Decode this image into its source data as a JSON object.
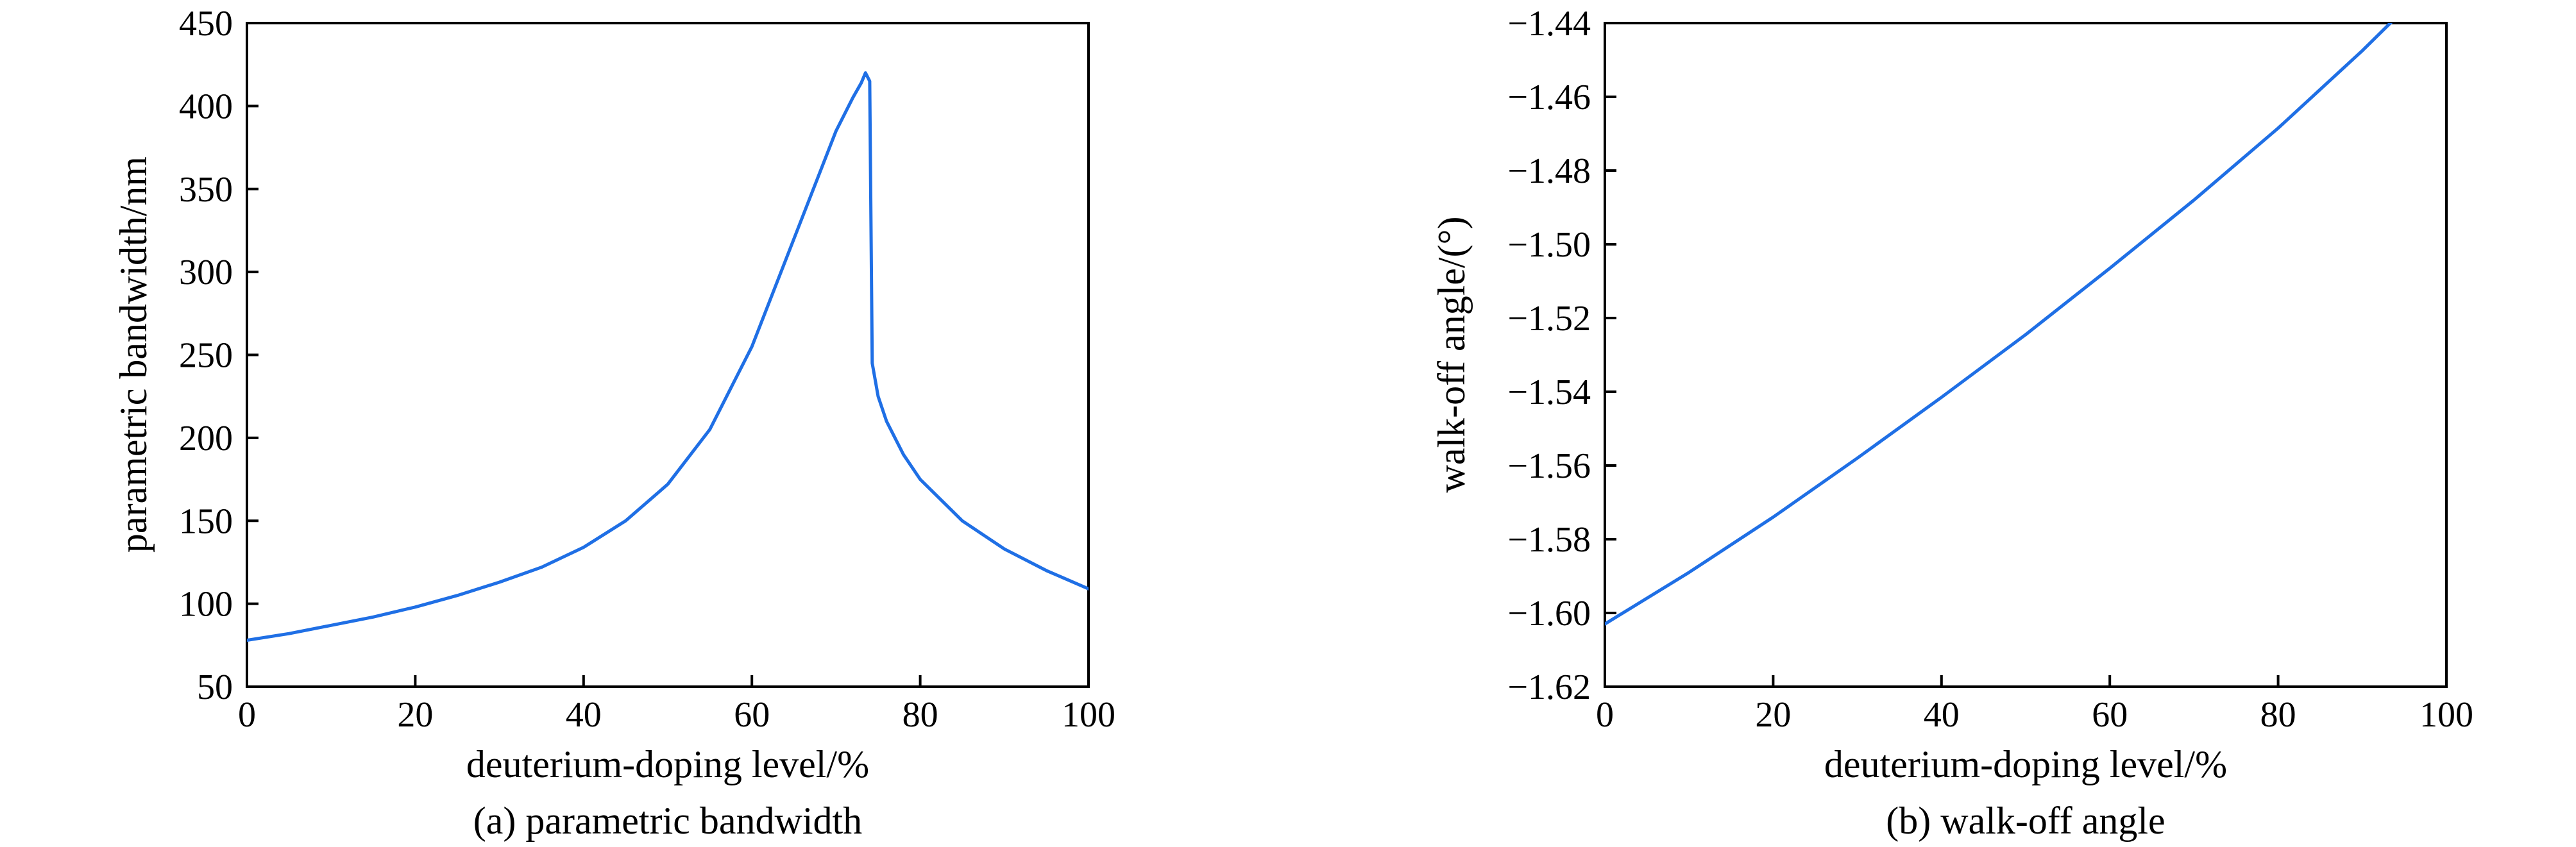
{
  "colors": {
    "series": "#1f6fe5",
    "axis": "#000000",
    "background": "#ffffff"
  },
  "chart_data": [
    {
      "type": "line",
      "caption": "(a) parametric bandwidth",
      "title": "",
      "xlabel": "deuterium-doping level/%",
      "ylabel": "parametric bandwidth/nm",
      "xlim": [
        0,
        100
      ],
      "ylim": [
        50,
        450
      ],
      "xticks": [
        0,
        20,
        40,
        60,
        80,
        100
      ],
      "xtick_labels": [
        "0",
        "20",
        "40",
        "60",
        "80",
        "100"
      ],
      "yticks": [
        50,
        100,
        150,
        200,
        250,
        300,
        350,
        400,
        450
      ],
      "ytick_labels": [
        "50",
        "100",
        "150",
        "200",
        "250",
        "300",
        "350",
        "400",
        "450"
      ],
      "grid": false,
      "legend": "none",
      "series": [
        {
          "x": [
            0,
            5,
            10,
            15,
            20,
            25,
            30,
            35,
            40,
            45,
            50,
            55,
            60,
            65,
            70,
            72,
            73,
            73.5,
            74,
            74.3,
            75,
            76,
            78,
            80,
            85,
            90,
            95,
            100
          ],
          "y": [
            78,
            82,
            87,
            92,
            98,
            105,
            113,
            122,
            134,
            150,
            172,
            205,
            255,
            320,
            385,
            405,
            414,
            420,
            415,
            245,
            225,
            210,
            190,
            175,
            150,
            133,
            120,
            109
          ]
        }
      ]
    },
    {
      "type": "line",
      "caption": "(b) walk-off angle",
      "title": "",
      "xlabel": "deuterium-doping level/%",
      "ylabel": "walk-off angle/(°)",
      "xlim": [
        0,
        100
      ],
      "ylim": [
        -1.62,
        -1.44
      ],
      "xticks": [
        0,
        20,
        40,
        60,
        80,
        100
      ],
      "xtick_labels": [
        "0",
        "20",
        "40",
        "60",
        "80",
        "100"
      ],
      "yticks": [
        -1.62,
        -1.6,
        -1.58,
        -1.56,
        -1.54,
        -1.52,
        -1.5,
        -1.48,
        -1.46,
        -1.44
      ],
      "ytick_labels": [
        "−1.62",
        "−1.60",
        "−1.58",
        "−1.56",
        "−1.54",
        "−1.52",
        "−1.50",
        "−1.48",
        "−1.46",
        "−1.44"
      ],
      "grid": false,
      "legend": "none",
      "series": [
        {
          "x": [
            0,
            10,
            20,
            30,
            40,
            50,
            60,
            70,
            80,
            90,
            100
          ],
          "y": [
            -1.603,
            -1.589,
            -1.574,
            -1.558,
            -1.5415,
            -1.5245,
            -1.5065,
            -1.488,
            -1.4685,
            -1.4475,
            -1.425
          ]
        }
      ]
    }
  ]
}
